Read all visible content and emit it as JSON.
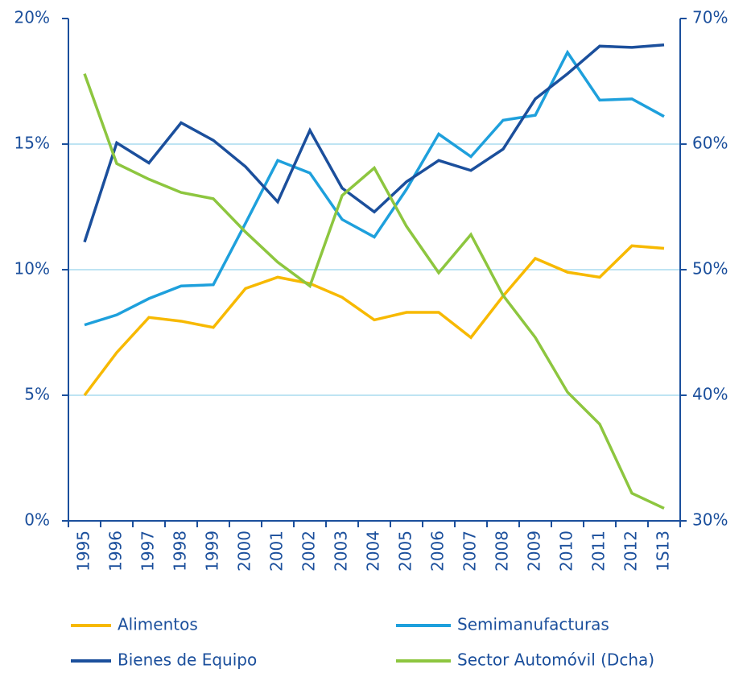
{
  "chart_data": {
    "type": "line",
    "categories": [
      "1995",
      "1996",
      "1997",
      "1998",
      "1999",
      "2000",
      "2001",
      "2002",
      "2003",
      "2004",
      "2005",
      "2006",
      "2007",
      "2008",
      "2009",
      "2010",
      "2011",
      "2012",
      "1S13"
    ],
    "series": [
      {
        "name": "Alimentos",
        "color": "#f7b900",
        "values": [
          5.0,
          6.7,
          8.1,
          7.95,
          7.7,
          9.25,
          9.7,
          9.45,
          8.9,
          8.0,
          8.3,
          8.3,
          7.3,
          8.95,
          10.45,
          9.9,
          9.7,
          10.95,
          10.85
        ]
      },
      {
        "name": "Semimanufacturas",
        "color": "#1ea0dc",
        "values": [
          7.8,
          8.2,
          8.85,
          9.35,
          9.4,
          11.85,
          14.35,
          13.85,
          12.0,
          11.3,
          13.2,
          15.4,
          14.5,
          15.95,
          16.15,
          18.65,
          16.75,
          16.8,
          16.1
        ]
      },
      {
        "name": "Bienes de Equipo",
        "color": "#1b4f9c",
        "values": [
          11.1,
          15.05,
          14.25,
          15.85,
          15.15,
          14.1,
          12.7,
          15.55,
          13.25,
          12.3,
          13.5,
          14.35,
          13.95,
          14.8,
          16.8,
          17.8,
          18.9,
          18.85,
          18.95
        ]
      },
      {
        "name": "Sector Automóvil (Dcha)",
        "color": "#8dc63f",
        "axis": "y2",
        "values": [
          65.6,
          58.45,
          57.2,
          56.15,
          55.65,
          53.0,
          50.6,
          48.7,
          55.9,
          58.1,
          53.45,
          49.75,
          52.8,
          47.95,
          44.6,
          40.25,
          37.7,
          32.2,
          31.0
        ]
      }
    ],
    "ylim": [
      0,
      20
    ],
    "yticks": [
      {
        "value": 0,
        "label": "0%"
      },
      {
        "value": 5,
        "label": "5%"
      },
      {
        "value": 10,
        "label": "10%"
      },
      {
        "value": 15,
        "label": "15%"
      },
      {
        "value": 20,
        "label": "20%"
      }
    ],
    "y2lim": [
      30,
      70
    ],
    "y2ticks": [
      {
        "value": 30,
        "label": "30%"
      },
      {
        "value": 40,
        "label": "40%"
      },
      {
        "value": 50,
        "label": "50%"
      },
      {
        "value": 60,
        "label": "60%"
      },
      {
        "value": 70,
        "label": "70%"
      }
    ],
    "grid": true,
    "legend": "bottom"
  }
}
